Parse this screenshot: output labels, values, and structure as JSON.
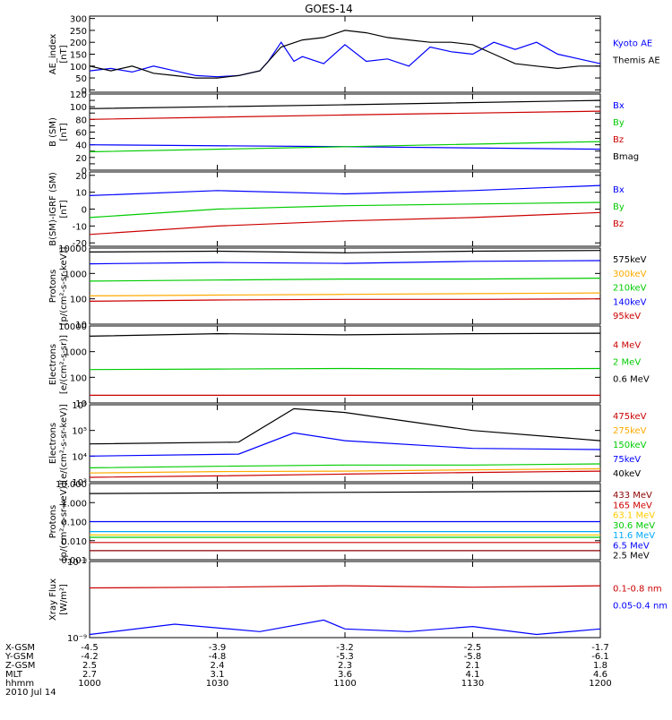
{
  "title": "GOES-14",
  "xaxis": {
    "row_labels": [
      "X-GSM",
      "Y-GSM",
      "Z-GSM",
      "MLT",
      "hhmm",
      "2010 Jul 14"
    ],
    "columns": [
      {
        "values": [
          "-4.5",
          "-4.2",
          "2.5",
          "2.7",
          "1000"
        ]
      },
      {
        "values": [
          "-3.9",
          "-4.8",
          "2.4",
          "3.1",
          "1030"
        ]
      },
      {
        "values": [
          "-3.2",
          "-5.3",
          "2.3",
          "3.6",
          "1100"
        ]
      },
      {
        "values": [
          "-2.5",
          "-5.8",
          "2.1",
          "4.1",
          "1130"
        ]
      },
      {
        "values": [
          "-1.7",
          "-6.1",
          "1.8",
          "4.6",
          "1200"
        ]
      }
    ]
  },
  "chart_data": [
    {
      "type": "line",
      "id": "ae",
      "ylabel": "AE_index",
      "yunits": "[nT]",
      "ylim": [
        -10,
        310
      ],
      "log": false,
      "yticks": [
        0,
        50,
        100,
        150,
        200,
        250,
        300
      ],
      "ytick_labels": [
        "0",
        "50",
        "100",
        "150",
        "200",
        "250",
        "300"
      ],
      "series": [
        {
          "name": "Kyoto AE",
          "color": "#0000ff",
          "x": [
            0,
            5,
            10,
            15,
            20,
            25,
            30,
            35,
            40,
            42,
            45,
            48,
            50,
            55,
            60,
            65,
            70,
            75,
            80,
            85,
            90,
            95,
            100,
            105,
            110,
            115,
            120
          ],
          "y": [
            80,
            90,
            75,
            100,
            80,
            60,
            55,
            60,
            80,
            120,
            200,
            120,
            140,
            110,
            190,
            120,
            130,
            100,
            180,
            160,
            150,
            200,
            170,
            200,
            150,
            130,
            110
          ]
        },
        {
          "name": "Themis AE",
          "color": "#000000",
          "x": [
            0,
            5,
            10,
            15,
            20,
            25,
            30,
            35,
            40,
            45,
            50,
            55,
            60,
            65,
            70,
            75,
            80,
            85,
            90,
            95,
            100,
            105,
            110,
            115,
            120
          ],
          "y": [
            100,
            80,
            100,
            70,
            60,
            50,
            50,
            60,
            80,
            180,
            210,
            220,
            250,
            240,
            220,
            210,
            200,
            200,
            190,
            150,
            110,
            100,
            90,
            100,
            100
          ]
        }
      ]
    },
    {
      "type": "line",
      "id": "b",
      "ylabel": "B (SM)",
      "yunits": "[nT]",
      "ylim": [
        0,
        120
      ],
      "log": false,
      "yticks": [
        0,
        10,
        20,
        30,
        40,
        50,
        60,
        70,
        80,
        90,
        100,
        110,
        120
      ],
      "ytick_labels": [
        "0",
        "",
        "20",
        "",
        "40",
        "",
        "60",
        "",
        "80",
        "",
        "100",
        "",
        "120"
      ],
      "series": [
        {
          "name": "Bx",
          "color": "#0000ff",
          "x": [
            0,
            60,
            120
          ],
          "y": [
            40,
            37,
            33
          ]
        },
        {
          "name": "By",
          "color": "#00cc00",
          "x": [
            0,
            60,
            120
          ],
          "y": [
            29,
            37,
            45
          ]
        },
        {
          "name": "Bz",
          "color": "#cc0000",
          "x": [
            0,
            60,
            120
          ],
          "y": [
            80,
            87,
            93
          ]
        },
        {
          "name": "Bmag",
          "color": "#000000",
          "x": [
            0,
            60,
            120
          ],
          "y": [
            97,
            103,
            110
          ]
        }
      ]
    },
    {
      "type": "line",
      "id": "bigrf",
      "ylabel": "B(SM)-IGRF (SM)",
      "yunits": "[nT]",
      "ylim": [
        -22,
        22
      ],
      "log": false,
      "yticks": [
        -20,
        -10,
        0,
        10,
        20
      ],
      "ytick_labels": [
        "-20",
        "-10",
        "0",
        "10",
        "20"
      ],
      "series": [
        {
          "name": "Bx",
          "color": "#0000ff",
          "x": [
            0,
            30,
            60,
            90,
            120
          ],
          "y": [
            8,
            11,
            9,
            11,
            14
          ]
        },
        {
          "name": "By",
          "color": "#00cc00",
          "x": [
            0,
            30,
            60,
            90,
            120
          ],
          "y": [
            -5,
            0,
            2,
            3,
            4
          ]
        },
        {
          "name": "Bz",
          "color": "#cc0000",
          "x": [
            0,
            30,
            60,
            90,
            120
          ],
          "y": [
            -15,
            -10,
            -7,
            -5,
            -2
          ]
        }
      ]
    },
    {
      "type": "line",
      "id": "protons1",
      "ylabel": "Protons",
      "yunits": "[p/(cm²-s-sr-keV)]",
      "ylim": [
        10,
        10000
      ],
      "log": true,
      "yticks": [
        10,
        100,
        1000,
        10000
      ],
      "ytick_labels": [
        "10",
        "100",
        "1000",
        "10000"
      ],
      "series": [
        {
          "name": "575keV",
          "color": "#000000",
          "x": [
            0,
            30,
            60,
            90,
            120
          ],
          "y": [
            7000,
            7500,
            6500,
            7500,
            8000
          ]
        },
        {
          "name": "300keV",
          "color": "#ffaa00",
          "x": [
            0,
            30,
            60,
            90,
            120
          ],
          "y": [
            130,
            140,
            150,
            160,
            170
          ]
        },
        {
          "name": "210keV",
          "color": "#00cc00",
          "x": [
            0,
            30,
            60,
            90,
            120
          ],
          "y": [
            500,
            550,
            600,
            600,
            650
          ]
        },
        {
          "name": "140keV",
          "color": "#0000ff",
          "x": [
            0,
            30,
            60,
            90,
            120
          ],
          "y": [
            2400,
            2700,
            2500,
            3000,
            3200
          ]
        },
        {
          "name": "95keV",
          "color": "#cc0000",
          "x": [
            0,
            30,
            60,
            90,
            120
          ],
          "y": [
            80,
            90,
            95,
            95,
            100
          ]
        }
      ]
    },
    {
      "type": "line",
      "id": "electrons1",
      "ylabel": "Electrons",
      "yunits": "[e/(cm²-s-sr)]",
      "ylim": [
        10,
        10000
      ],
      "log": true,
      "yticks": [
        10,
        100,
        1000,
        10000
      ],
      "ytick_labels": [
        "10",
        "100",
        "1000",
        "10000"
      ],
      "series": [
        {
          "name": "4 MeV",
          "color": "#cc0000",
          "x": [
            0,
            30,
            60,
            90,
            120
          ],
          "y": [
            20,
            20,
            20,
            20,
            20
          ]
        },
        {
          "name": "2 MeV",
          "color": "#00cc00",
          "x": [
            0,
            30,
            60,
            90,
            120
          ],
          "y": [
            200,
            210,
            220,
            210,
            220
          ]
        },
        {
          "name": "0.6 MeV",
          "color": "#000000",
          "x": [
            0,
            30,
            60,
            90,
            120
          ],
          "y": [
            4000,
            5000,
            4500,
            5000,
            5200
          ]
        }
      ]
    },
    {
      "type": "line",
      "id": "electrons2",
      "ylabel": "Electrons",
      "yunits": "[e/(cm²-s-sr-keV)]",
      "ylim": [
        1000,
        1000000
      ],
      "log": true,
      "yticks": [
        1000,
        10000,
        100000,
        1000000
      ],
      "ytick_labels": [
        "10³",
        "10⁴",
        "10⁵",
        "10⁶"
      ],
      "series": [
        {
          "name": "475keV",
          "color": "#cc0000",
          "x": [
            0,
            30,
            60,
            90,
            120
          ],
          "y": [
            1500,
            1700,
            2000,
            2300,
            2600
          ]
        },
        {
          "name": "275keV",
          "color": "#ffaa00",
          "x": [
            0,
            30,
            60,
            90,
            120
          ],
          "y": [
            2200,
            2500,
            2600,
            2900,
            3200
          ]
        },
        {
          "name": "150keV",
          "color": "#00cc00",
          "x": [
            0,
            30,
            60,
            90,
            120
          ],
          "y": [
            3500,
            4000,
            4500,
            4500,
            5000
          ]
        },
        {
          "name": "75keV",
          "color": "#0000ff",
          "x": [
            0,
            35,
            48,
            60,
            90,
            120
          ],
          "y": [
            10000,
            12000,
            80000,
            40000,
            20000,
            18000
          ]
        },
        {
          "name": "40keV",
          "color": "#000000",
          "x": [
            0,
            35,
            48,
            60,
            90,
            120
          ],
          "y": [
            30000,
            35000,
            700000,
            500000,
            100000,
            40000
          ]
        }
      ]
    },
    {
      "type": "line",
      "id": "protons2",
      "ylabel": "Protons",
      "yunits": "[p/(cm²-s-sr-keV)]",
      "ylim": [
        0.001,
        10
      ],
      "log": true,
      "yticks": [
        0.001,
        0.01,
        0.1,
        1,
        10
      ],
      "ytick_labels": [
        "0.001",
        "0.010",
        "0.100",
        "1.000",
        "10.000"
      ],
      "series": [
        {
          "name": "433 MeV",
          "color": "#8b0000",
          "x": [
            0,
            120
          ],
          "y": [
            0.003,
            0.003
          ]
        },
        {
          "name": "165 MeV",
          "color": "#cc0000",
          "x": [
            0,
            120
          ],
          "y": [
            0.008,
            0.008
          ]
        },
        {
          "name": "63.1 MeV",
          "color": "#ffcc00",
          "x": [
            0,
            120
          ],
          "y": [
            0.02,
            0.02
          ]
        },
        {
          "name": "30.6 MeV",
          "color": "#00cc00",
          "x": [
            0,
            120
          ],
          "y": [
            0.015,
            0.015
          ]
        },
        {
          "name": "11.6 MeV",
          "color": "#00aaff",
          "x": [
            0,
            120
          ],
          "y": [
            0.03,
            0.03
          ]
        },
        {
          "name": "6.5 MeV",
          "color": "#0000ff",
          "x": [
            0,
            120
          ],
          "y": [
            0.1,
            0.1
          ]
        },
        {
          "name": "2.5 MeV",
          "color": "#000000",
          "x": [
            0,
            120
          ],
          "y": [
            3,
            4
          ]
        }
      ]
    },
    {
      "type": "line",
      "id": "xray",
      "ylabel": "Xray Flux",
      "yunits": "[W/m²]",
      "ylim": [
        1e-09,
        1e-08
      ],
      "log": true,
      "yticks": [
        1e-09,
        1e-08
      ],
      "ytick_labels": [
        "10⁻⁹",
        "10⁻⁸"
      ],
      "series": [
        {
          "name": "0.1-0.8 nm",
          "color": "#cc0000",
          "x": [
            0,
            30,
            60,
            90,
            120
          ],
          "y": [
            4.5e-09,
            4.6e-09,
            4.8e-09,
            4.6e-09,
            4.8e-09
          ]
        },
        {
          "name": "0.05-0.4 nm",
          "color": "#0000ff",
          "x": [
            0,
            20,
            40,
            55,
            60,
            75,
            90,
            105,
            120
          ],
          "y": [
            1.1e-09,
            1.5e-09,
            1.2e-09,
            1.7e-09,
            1.3e-09,
            1.2e-09,
            1.4e-09,
            1.1e-09,
            1.3e-09
          ]
        }
      ]
    }
  ]
}
